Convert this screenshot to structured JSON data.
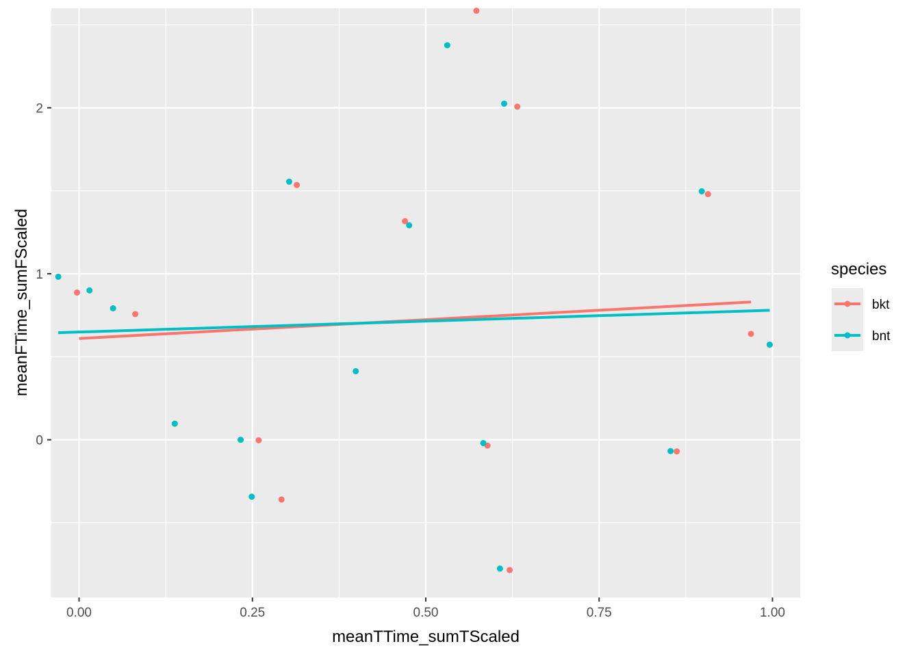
{
  "chart_data": {
    "type": "scatter",
    "xlabel": "meanTTime_sumTScaled",
    "ylabel": "meanFTime_sumFScaled",
    "xlim": [
      -0.04,
      1.04
    ],
    "ylim": [
      -0.95,
      2.6
    ],
    "x_ticks": [
      0.0,
      0.25,
      0.5,
      0.75,
      1.0
    ],
    "x_tick_labels": [
      "0.00",
      "0.25",
      "0.50",
      "0.75",
      "1.00"
    ],
    "y_ticks": [
      0,
      1,
      2
    ],
    "y_tick_labels": [
      "0",
      "1",
      "2"
    ],
    "grid": true,
    "legend": {
      "title": "species",
      "placement": "right"
    },
    "series": [
      {
        "name": "bkt",
        "color": "#F8766D",
        "points": [
          [
            -0.003,
            0.887
          ],
          [
            0.081,
            0.757
          ],
          [
            0.259,
            -0.003
          ],
          [
            0.292,
            -0.36
          ],
          [
            0.314,
            1.535
          ],
          [
            0.47,
            1.317
          ],
          [
            0.573,
            2.585
          ],
          [
            0.589,
            -0.035
          ],
          [
            0.621,
            -0.785
          ],
          [
            0.632,
            2.007
          ],
          [
            0.862,
            -0.07
          ],
          [
            0.907,
            1.48
          ],
          [
            0.969,
            0.638
          ]
        ],
        "trend": {
          "x": [
            0.0,
            0.969
          ],
          "y": [
            0.61,
            0.83
          ]
        }
      },
      {
        "name": "bnt",
        "color": "#00BFC4",
        "points": [
          [
            -0.03,
            0.982
          ],
          [
            0.015,
            0.9
          ],
          [
            0.049,
            0.792
          ],
          [
            0.138,
            0.097
          ],
          [
            0.233,
            0.0
          ],
          [
            0.249,
            -0.343
          ],
          [
            0.303,
            1.555
          ],
          [
            0.399,
            0.413
          ],
          [
            0.476,
            1.292
          ],
          [
            0.531,
            2.377
          ],
          [
            0.583,
            -0.02
          ],
          [
            0.607,
            -0.776
          ],
          [
            0.613,
            2.025
          ],
          [
            0.853,
            -0.068
          ],
          [
            0.898,
            1.497
          ],
          [
            0.996,
            0.573
          ]
        ],
        "trend": {
          "x": [
            -0.03,
            0.996
          ],
          "y": [
            0.645,
            0.78
          ]
        }
      }
    ]
  }
}
